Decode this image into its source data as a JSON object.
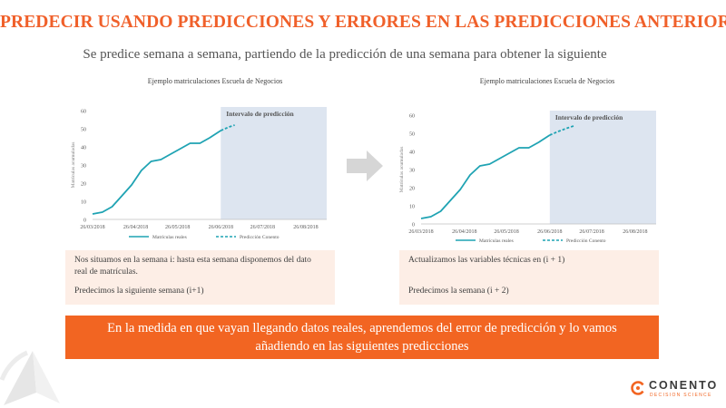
{
  "header": {
    "title": "PREDECIR USANDO PREDICCIONES Y ERRORES EN LAS PREDICCIONES ANTERIORES",
    "subtitle": "Se predice semana a semana, partiendo de la predicción de una semana para obtener la siguiente"
  },
  "chart_data": [
    {
      "type": "line",
      "title": "Ejemplo matriculaciones Escuela de Negocios",
      "xlabel": "",
      "ylabel": "Matrículas acumuladas",
      "ylim": [
        0,
        60
      ],
      "yticks": [
        "0",
        "10",
        "20",
        "30",
        "40",
        "50",
        "60"
      ],
      "xticks": [
        "26/03/2018",
        "26/04/2018",
        "26/05/2018",
        "26/06/2018",
        "26/07/2018",
        "26/08/2018"
      ],
      "region_label": "Intervalo de predicción",
      "region": [
        "2018-06-26",
        "2018-09-10"
      ],
      "grid": false,
      "legend_position": "bottom",
      "series": [
        {
          "name": "Matrículas reales",
          "style": "solid",
          "color": "#1fa3b3",
          "x": [
            "2018-03-26",
            "2018-04-02",
            "2018-04-09",
            "2018-04-16",
            "2018-04-23",
            "2018-04-30",
            "2018-05-07",
            "2018-05-14",
            "2018-05-21",
            "2018-05-28",
            "2018-06-04",
            "2018-06-11",
            "2018-06-18",
            "2018-06-26"
          ],
          "y": [
            3,
            4,
            7,
            13,
            19,
            27,
            32,
            33,
            36,
            39,
            42,
            42,
            45,
            49
          ]
        },
        {
          "name": "Predicción Conento",
          "style": "dashed",
          "color": "#1fa3b3",
          "x": [
            "2018-06-26",
            "2018-07-02",
            "2018-07-06"
          ],
          "y": [
            49,
            51,
            52
          ]
        }
      ]
    },
    {
      "type": "line",
      "title": "Ejemplo matriculaciones Escuela de Negocios",
      "xlabel": "",
      "ylabel": "Matrículas acumuladas",
      "ylim": [
        0,
        60
      ],
      "yticks": [
        "0",
        "10",
        "20",
        "30",
        "40",
        "50",
        "60"
      ],
      "xticks": [
        "26/03/2018",
        "26/04/2018",
        "26/05/2018",
        "26/06/2018",
        "26/07/2018",
        "26/08/2018"
      ],
      "region_label": "Intervalo de predicción",
      "region": [
        "2018-06-26",
        "2018-09-10"
      ],
      "grid": false,
      "legend_position": "bottom",
      "series": [
        {
          "name": "Matrículas reales",
          "style": "solid",
          "color": "#1fa3b3",
          "x": [
            "2018-03-26",
            "2018-04-02",
            "2018-04-09",
            "2018-04-16",
            "2018-04-23",
            "2018-04-30",
            "2018-05-07",
            "2018-05-14",
            "2018-05-21",
            "2018-05-28",
            "2018-06-04",
            "2018-06-11",
            "2018-06-18",
            "2018-06-26"
          ],
          "y": [
            3,
            4,
            7,
            13,
            19,
            27,
            32,
            33,
            36,
            39,
            42,
            42,
            45,
            49
          ]
        },
        {
          "name": "Predicción Conento",
          "style": "dashed",
          "color": "#1fa3b3",
          "x": [
            "2018-06-26",
            "2018-07-02",
            "2018-07-09",
            "2018-07-13"
          ],
          "y": [
            49,
            51,
            53,
            54
          ]
        }
      ]
    }
  ],
  "notes": {
    "left": {
      "line1": "Nos situamos en la semana i: hasta esta semana disponemos del dato real de matrículas.",
      "line2": "Predecimos la siguiente semana (i+1)"
    },
    "right": {
      "line1": "Actualizamos las variables técnicas en (i + 1)",
      "line2": "Predecimos la semana (i + 2)"
    }
  },
  "banner": {
    "text": "En la medida en que vayan llegando datos reales, aprendemos del error de predicción y lo vamos añadiendo en las siguientes predicciones"
  },
  "logo": {
    "name": "CONENTO",
    "tagline": "DECISION SCIENCE"
  },
  "colors": {
    "accent": "#f26522",
    "title": "#f0602a",
    "series": "#1fa3b3",
    "region": "#dde5f0",
    "note_bg": "#fdeee6"
  }
}
